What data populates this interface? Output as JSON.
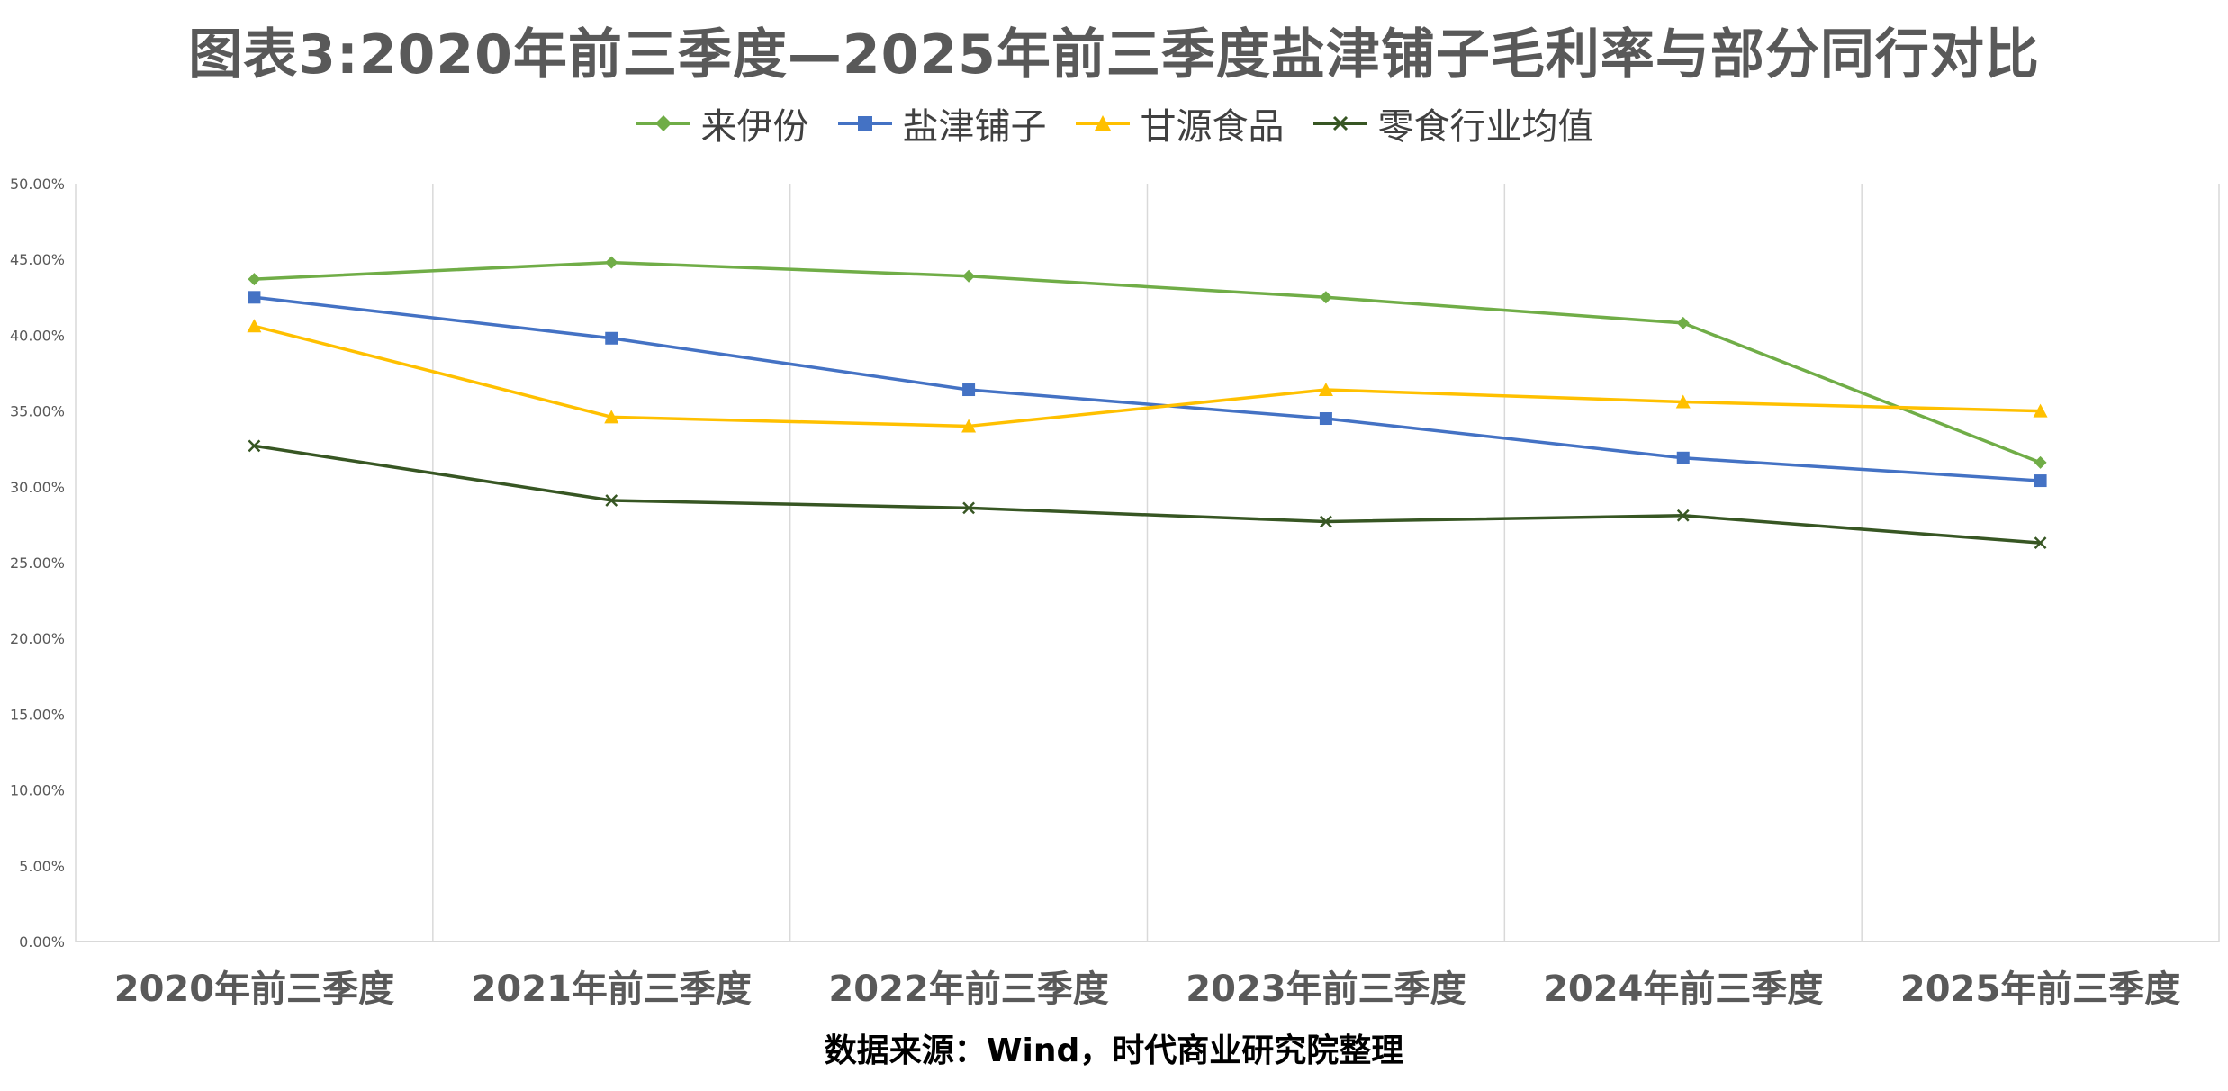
{
  "chart_data": {
    "type": "line",
    "title": "图表3:2020年前三季度—2025年前三季度盐津铺子毛利率与部分同行对比",
    "categories": [
      "2020年前三季度",
      "2021年前三季度",
      "2022年前三季度",
      "2023年前三季度",
      "2024年前三季度",
      "2025年前三季度"
    ],
    "ylim": [
      0,
      0.5
    ],
    "yticks": [
      "0.00%",
      "5.00%",
      "10.00%",
      "15.00%",
      "20.00%",
      "25.00%",
      "30.00%",
      "35.00%",
      "40.00%",
      "45.00%",
      "50.00%"
    ],
    "ytick_values": [
      0,
      0.05,
      0.1,
      0.15,
      0.2,
      0.25,
      0.3,
      0.35,
      0.4,
      0.45,
      0.5
    ],
    "series": [
      {
        "name": "来伊份",
        "color": "#70ad47",
        "marker": "diamond",
        "values": [
          0.437,
          0.448,
          0.439,
          0.425,
          0.408,
          0.316
        ]
      },
      {
        "name": "盐津铺子",
        "color": "#4472c4",
        "marker": "square",
        "values": [
          0.425,
          0.398,
          0.364,
          0.345,
          0.319,
          0.304
        ]
      },
      {
        "name": "甘源食品",
        "color": "#ffc000",
        "marker": "triangle",
        "values": [
          0.406,
          0.346,
          0.34,
          0.364,
          0.356,
          0.35
        ]
      },
      {
        "name": "零食行业均值",
        "color": "#375623",
        "marker": "x",
        "values": [
          0.327,
          0.291,
          0.286,
          0.277,
          0.281,
          0.263
        ]
      }
    ],
    "legend_position": "top",
    "grid": "vertical"
  },
  "footer": {
    "source": "数据来源：Wind，时代商业研究院整理"
  }
}
